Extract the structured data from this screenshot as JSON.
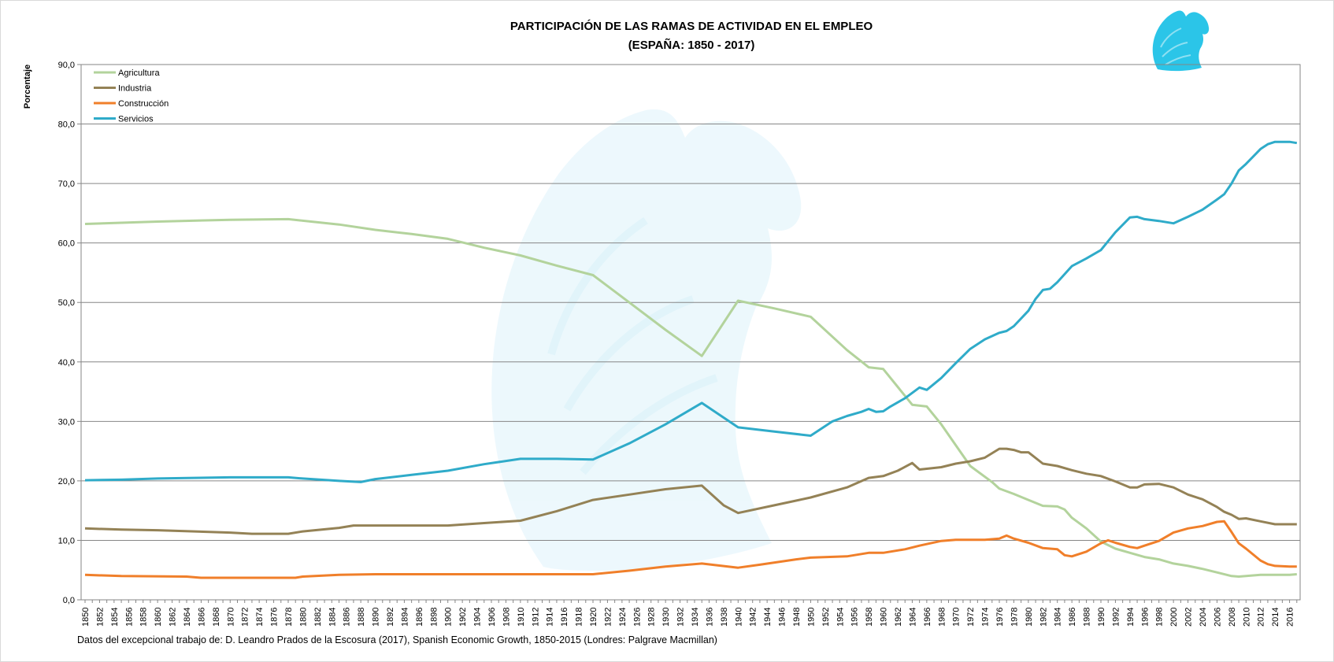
{
  "chart_data": {
    "type": "line",
    "title": "PARTICIPACIÓN DE LAS RAMAS DE ACTIVIDAD EN EL EMPLEO",
    "subtitle": "(ESPAÑA: 1850 - 2017)",
    "xlabel": "",
    "ylabel": "Porcentaje",
    "xlim": [
      1850,
      2017
    ],
    "ylim": [
      0,
      90
    ],
    "yticks": [
      "0,0",
      "10,0",
      "20,0",
      "30,0",
      "40,0",
      "50,0",
      "60,0",
      "70,0",
      "80,0",
      "90,0"
    ],
    "xtick_step": 2,
    "grid": true,
    "legend_position": "top-left",
    "series": [
      {
        "name": "Agricultura",
        "color": "#b3d39c",
        "points": [
          [
            1850,
            63.2
          ],
          [
            1860,
            63.6
          ],
          [
            1870,
            63.9
          ],
          [
            1878,
            64.0
          ],
          [
            1885,
            63.1
          ],
          [
            1890,
            62.2
          ],
          [
            1895,
            61.5
          ],
          [
            1900,
            60.7
          ],
          [
            1905,
            59.2
          ],
          [
            1910,
            57.9
          ],
          [
            1915,
            56.2
          ],
          [
            1920,
            54.6
          ],
          [
            1925,
            50.0
          ],
          [
            1930,
            45.4
          ],
          [
            1935,
            41.0
          ],
          [
            1940,
            50.3
          ],
          [
            1945,
            49.0
          ],
          [
            1950,
            47.6
          ],
          [
            1955,
            42.0
          ],
          [
            1958,
            39.1
          ],
          [
            1960,
            38.8
          ],
          [
            1964,
            32.8
          ],
          [
            1966,
            32.5
          ],
          [
            1968,
            29.5
          ],
          [
            1970,
            26.0
          ],
          [
            1972,
            22.5
          ],
          [
            1975,
            19.8
          ],
          [
            1976,
            18.7
          ],
          [
            1978,
            17.8
          ],
          [
            1980,
            16.8
          ],
          [
            1982,
            15.8
          ],
          [
            1984,
            15.7
          ],
          [
            1985,
            15.2
          ],
          [
            1986,
            13.8
          ],
          [
            1988,
            12.0
          ],
          [
            1990,
            9.8
          ],
          [
            1992,
            8.6
          ],
          [
            1994,
            7.9
          ],
          [
            1996,
            7.2
          ],
          [
            1998,
            6.8
          ],
          [
            2000,
            6.1
          ],
          [
            2002,
            5.7
          ],
          [
            2004,
            5.2
          ],
          [
            2006,
            4.6
          ],
          [
            2008,
            4.0
          ],
          [
            2009,
            3.9
          ],
          [
            2010,
            4.0
          ],
          [
            2012,
            4.2
          ],
          [
            2014,
            4.2
          ],
          [
            2016,
            4.2
          ],
          [
            2017,
            4.3
          ]
        ]
      },
      {
        "name": "Industria",
        "color": "#948256",
        "points": [
          [
            1850,
            12.0
          ],
          [
            1855,
            11.8
          ],
          [
            1860,
            11.7
          ],
          [
            1870,
            11.3
          ],
          [
            1873,
            11.1
          ],
          [
            1878,
            11.1
          ],
          [
            1880,
            11.5
          ],
          [
            1885,
            12.1
          ],
          [
            1887,
            12.5
          ],
          [
            1890,
            12.5
          ],
          [
            1900,
            12.5
          ],
          [
            1905,
            12.9
          ],
          [
            1910,
            13.3
          ],
          [
            1915,
            14.9
          ],
          [
            1920,
            16.8
          ],
          [
            1925,
            17.7
          ],
          [
            1930,
            18.6
          ],
          [
            1935,
            19.2
          ],
          [
            1938,
            15.9
          ],
          [
            1940,
            14.6
          ],
          [
            1945,
            15.9
          ],
          [
            1950,
            17.2
          ],
          [
            1955,
            18.9
          ],
          [
            1958,
            20.5
          ],
          [
            1960,
            20.8
          ],
          [
            1962,
            21.7
          ],
          [
            1964,
            23.0
          ],
          [
            1965,
            21.9
          ],
          [
            1968,
            22.3
          ],
          [
            1970,
            22.9
          ],
          [
            1972,
            23.3
          ],
          [
            1974,
            23.9
          ],
          [
            1976,
            25.4
          ],
          [
            1977,
            25.4
          ],
          [
            1978,
            25.2
          ],
          [
            1979,
            24.8
          ],
          [
            1980,
            24.8
          ],
          [
            1982,
            22.9
          ],
          [
            1984,
            22.5
          ],
          [
            1986,
            21.8
          ],
          [
            1988,
            21.2
          ],
          [
            1990,
            20.8
          ],
          [
            1992,
            19.9
          ],
          [
            1994,
            18.9
          ],
          [
            1995,
            18.9
          ],
          [
            1996,
            19.4
          ],
          [
            1998,
            19.5
          ],
          [
            2000,
            18.9
          ],
          [
            2002,
            17.7
          ],
          [
            2004,
            16.9
          ],
          [
            2006,
            15.6
          ],
          [
            2007,
            14.8
          ],
          [
            2008,
            14.3
          ],
          [
            2009,
            13.6
          ],
          [
            2010,
            13.7
          ],
          [
            2012,
            13.2
          ],
          [
            2014,
            12.7
          ],
          [
            2017,
            12.7
          ]
        ]
      },
      {
        "name": "Construcción",
        "color": "#f07f2a",
        "points": [
          [
            1850,
            4.2
          ],
          [
            1855,
            4.0
          ],
          [
            1864,
            3.9
          ],
          [
            1866,
            3.7
          ],
          [
            1879,
            3.7
          ],
          [
            1880,
            3.9
          ],
          [
            1885,
            4.2
          ],
          [
            1890,
            4.3
          ],
          [
            1920,
            4.3
          ],
          [
            1925,
            4.9
          ],
          [
            1930,
            5.6
          ],
          [
            1935,
            6.1
          ],
          [
            1940,
            5.4
          ],
          [
            1943,
            5.9
          ],
          [
            1948,
            6.8
          ],
          [
            1950,
            7.1
          ],
          [
            1955,
            7.3
          ],
          [
            1958,
            7.9
          ],
          [
            1960,
            7.9
          ],
          [
            1963,
            8.5
          ],
          [
            1965,
            9.1
          ],
          [
            1968,
            9.9
          ],
          [
            1970,
            10.1
          ],
          [
            1972,
            10.1
          ],
          [
            1974,
            10.1
          ],
          [
            1976,
            10.3
          ],
          [
            1977,
            10.8
          ],
          [
            1978,
            10.3
          ],
          [
            1980,
            9.6
          ],
          [
            1982,
            8.7
          ],
          [
            1984,
            8.5
          ],
          [
            1985,
            7.5
          ],
          [
            1986,
            7.3
          ],
          [
            1988,
            8.1
          ],
          [
            1990,
            9.5
          ],
          [
            1991,
            10.0
          ],
          [
            1992,
            9.6
          ],
          [
            1994,
            8.9
          ],
          [
            1995,
            8.7
          ],
          [
            1996,
            9.1
          ],
          [
            1998,
            9.9
          ],
          [
            2000,
            11.3
          ],
          [
            2002,
            12.0
          ],
          [
            2004,
            12.4
          ],
          [
            2006,
            13.1
          ],
          [
            2007,
            13.2
          ],
          [
            2008,
            11.4
          ],
          [
            2009,
            9.5
          ],
          [
            2010,
            8.6
          ],
          [
            2012,
            6.6
          ],
          [
            2013,
            6.0
          ],
          [
            2014,
            5.7
          ],
          [
            2016,
            5.6
          ],
          [
            2017,
            5.6
          ]
        ]
      },
      {
        "name": "Servicios",
        "color": "#2fabc9",
        "points": [
          [
            1850,
            20.1
          ],
          [
            1855,
            20.2
          ],
          [
            1860,
            20.4
          ],
          [
            1865,
            20.5
          ],
          [
            1870,
            20.6
          ],
          [
            1878,
            20.6
          ],
          [
            1880,
            20.4
          ],
          [
            1885,
            20.0
          ],
          [
            1888,
            19.8
          ],
          [
            1890,
            20.3
          ],
          [
            1895,
            21.0
          ],
          [
            1900,
            21.7
          ],
          [
            1905,
            22.8
          ],
          [
            1910,
            23.7
          ],
          [
            1915,
            23.7
          ],
          [
            1920,
            23.6
          ],
          [
            1925,
            26.3
          ],
          [
            1930,
            29.5
          ],
          [
            1935,
            33.1
          ],
          [
            1940,
            29.0
          ],
          [
            1945,
            28.3
          ],
          [
            1950,
            27.6
          ],
          [
            1953,
            30.0
          ],
          [
            1955,
            30.9
          ],
          [
            1957,
            31.6
          ],
          [
            1958,
            32.1
          ],
          [
            1959,
            31.6
          ],
          [
            1960,
            31.7
          ],
          [
            1961,
            32.5
          ],
          [
            1963,
            33.9
          ],
          [
            1965,
            35.7
          ],
          [
            1966,
            35.3
          ],
          [
            1968,
            37.3
          ],
          [
            1970,
            39.8
          ],
          [
            1972,
            42.2
          ],
          [
            1974,
            43.8
          ],
          [
            1976,
            44.9
          ],
          [
            1977,
            45.2
          ],
          [
            1978,
            46.0
          ],
          [
            1980,
            48.6
          ],
          [
            1981,
            50.6
          ],
          [
            1982,
            52.1
          ],
          [
            1983,
            52.3
          ],
          [
            1984,
            53.4
          ],
          [
            1986,
            56.1
          ],
          [
            1988,
            57.4
          ],
          [
            1990,
            58.8
          ],
          [
            1992,
            61.8
          ],
          [
            1994,
            64.3
          ],
          [
            1995,
            64.4
          ],
          [
            1996,
            64.0
          ],
          [
            1998,
            63.7
          ],
          [
            2000,
            63.3
          ],
          [
            2002,
            64.4
          ],
          [
            2004,
            65.6
          ],
          [
            2006,
            67.3
          ],
          [
            2007,
            68.2
          ],
          [
            2008,
            70.0
          ],
          [
            2009,
            72.2
          ],
          [
            2010,
            73.3
          ],
          [
            2012,
            75.8
          ],
          [
            2013,
            76.6
          ],
          [
            2014,
            77.0
          ],
          [
            2016,
            77.0
          ],
          [
            2017,
            76.8
          ]
        ]
      }
    ]
  },
  "source_note": "Datos del excepcional trabajo de:  D. Leandro Prados de la Escosura (2017),  Spanish Economic Growth, 1850-2015  (Londres: Palgrave Macmillan)",
  "logo_icon": "griffin-logo-icon",
  "watermark_icon": "griffin-watermark-icon",
  "colors": {
    "grid": "#868686",
    "plot_border": "#868686",
    "logo": "#2bc5e8",
    "watermark": "#def3fb"
  }
}
